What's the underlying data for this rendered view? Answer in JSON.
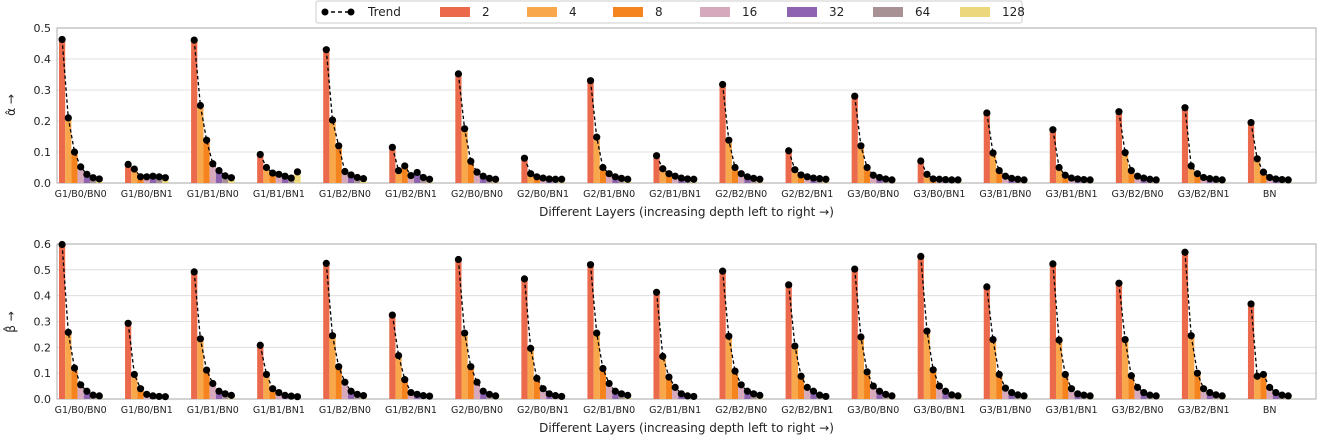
{
  "legend": {
    "trend_label": "Trend",
    "bit_labels": [
      "2",
      "4",
      "8",
      "16",
      "32",
      "64",
      "128"
    ],
    "colors": [
      "#ea6a4b",
      "#f8a84a",
      "#f5841f",
      "#d6a9bd",
      "#8e63b0",
      "#a89195",
      "#ecd87a"
    ]
  },
  "chart_data": [
    {
      "type": "bar",
      "ylabel": "α̂ →",
      "xlabel": "Different Layers (increasing depth left to right →)",
      "ylim": [
        0,
        0.5
      ],
      "yticks": [
        "0.0",
        "0.1",
        "0.2",
        "0.3",
        "0.4",
        "0.5"
      ],
      "categories": [
        "G1/B0/BN0",
        "G1/B0/BN1",
        "G1/B1/BN0",
        "G1/B1/BN1",
        "G1/B2/BN0",
        "G1/B2/BN1",
        "G2/B0/BN0",
        "G2/B0/BN1",
        "G2/B1/BN0",
        "G2/B1/BN1",
        "G2/B2/BN0",
        "G2/B2/BN1",
        "G3/B0/BN0",
        "G3/B0/BN1",
        "G3/B1/BN0",
        "G3/B1/BN1",
        "G3/B2/BN0",
        "G3/B2/BN1",
        "BN"
      ],
      "values": [
        [
          0.463,
          0.21,
          0.1,
          0.052,
          0.028,
          0.017,
          0.013
        ],
        [
          0.06,
          0.045,
          0.02,
          0.02,
          0.022,
          0.02,
          0.017
        ],
        [
          0.461,
          0.25,
          0.138,
          0.062,
          0.04,
          0.023,
          0.017
        ],
        [
          0.092,
          0.05,
          0.032,
          0.028,
          0.022,
          0.016,
          0.036
        ],
        [
          0.43,
          0.203,
          0.12,
          0.037,
          0.026,
          0.018,
          0.014
        ],
        [
          0.115,
          0.04,
          0.055,
          0.024,
          0.034,
          0.018,
          0.012
        ],
        [
          0.352,
          0.175,
          0.07,
          0.035,
          0.022,
          0.015,
          0.012
        ],
        [
          0.08,
          0.03,
          0.02,
          0.016,
          0.013,
          0.012,
          0.012
        ],
        [
          0.33,
          0.148,
          0.05,
          0.03,
          0.02,
          0.015,
          0.012
        ],
        [
          0.088,
          0.046,
          0.03,
          0.022,
          0.016,
          0.013,
          0.012
        ],
        [
          0.318,
          0.138,
          0.05,
          0.03,
          0.02,
          0.015,
          0.012
        ],
        [
          0.104,
          0.043,
          0.026,
          0.02,
          0.016,
          0.014,
          0.012
        ],
        [
          0.28,
          0.12,
          0.05,
          0.025,
          0.018,
          0.013,
          0.01
        ],
        [
          0.071,
          0.028,
          0.013,
          0.012,
          0.011,
          0.01,
          0.01
        ],
        [
          0.226,
          0.097,
          0.04,
          0.022,
          0.015,
          0.012,
          0.01
        ],
        [
          0.172,
          0.05,
          0.025,
          0.016,
          0.013,
          0.011,
          0.01
        ],
        [
          0.23,
          0.098,
          0.04,
          0.022,
          0.016,
          0.012,
          0.01
        ],
        [
          0.243,
          0.055,
          0.03,
          0.018,
          0.014,
          0.012,
          0.01
        ],
        [
          0.195,
          0.078,
          0.035,
          0.018,
          0.013,
          0.011,
          0.01
        ]
      ]
    },
    {
      "type": "bar",
      "ylabel": "β̂ →",
      "xlabel": "Different Layers (increasing depth left to right →)",
      "ylim": [
        0,
        0.6
      ],
      "yticks": [
        "0.0",
        "0.1",
        "0.2",
        "0.3",
        "0.4",
        "0.5",
        "0.6"
      ],
      "categories": [
        "G1/B0/BN0",
        "G1/B0/BN1",
        "G1/B1/BN0",
        "G1/B1/BN1",
        "G1/B2/BN0",
        "G1/B2/BN1",
        "G2/B0/BN0",
        "G2/B0/BN1",
        "G2/B1/BN0",
        "G2/B1/BN1",
        "G2/B2/BN0",
        "G2/B2/BN1",
        "G3/B0/BN0",
        "G3/B0/BN1",
        "G3/B1/BN0",
        "G3/B1/BN1",
        "G3/B2/BN0",
        "G3/B2/BN1",
        "BN"
      ],
      "values": [
        [
          0.598,
          0.258,
          0.12,
          0.055,
          0.03,
          0.015,
          0.012
        ],
        [
          0.293,
          0.095,
          0.04,
          0.018,
          0.012,
          0.01,
          0.009
        ],
        [
          0.492,
          0.233,
          0.112,
          0.06,
          0.03,
          0.02,
          0.014
        ],
        [
          0.208,
          0.095,
          0.04,
          0.025,
          0.014,
          0.011,
          0.009
        ],
        [
          0.525,
          0.245,
          0.125,
          0.065,
          0.03,
          0.018,
          0.013
        ],
        [
          0.325,
          0.168,
          0.075,
          0.025,
          0.018,
          0.013,
          0.011
        ],
        [
          0.54,
          0.255,
          0.125,
          0.065,
          0.03,
          0.018,
          0.012
        ],
        [
          0.465,
          0.196,
          0.08,
          0.04,
          0.02,
          0.013,
          0.01
        ],
        [
          0.52,
          0.255,
          0.118,
          0.06,
          0.03,
          0.02,
          0.014
        ],
        [
          0.413,
          0.165,
          0.085,
          0.045,
          0.02,
          0.012,
          0.01
        ],
        [
          0.495,
          0.243,
          0.108,
          0.055,
          0.03,
          0.02,
          0.014
        ],
        [
          0.442,
          0.205,
          0.088,
          0.045,
          0.03,
          0.015,
          0.01
        ],
        [
          0.503,
          0.24,
          0.105,
          0.05,
          0.03,
          0.018,
          0.012
        ],
        [
          0.552,
          0.263,
          0.113,
          0.05,
          0.03,
          0.016,
          0.012
        ],
        [
          0.434,
          0.23,
          0.095,
          0.042,
          0.025,
          0.016,
          0.012
        ],
        [
          0.523,
          0.228,
          0.095,
          0.04,
          0.02,
          0.015,
          0.012
        ],
        [
          0.448,
          0.23,
          0.09,
          0.045,
          0.025,
          0.015,
          0.012
        ],
        [
          0.568,
          0.245,
          0.1,
          0.04,
          0.025,
          0.016,
          0.012
        ],
        [
          0.368,
          0.088,
          0.095,
          0.045,
          0.025,
          0.015,
          0.012
        ]
      ]
    }
  ]
}
